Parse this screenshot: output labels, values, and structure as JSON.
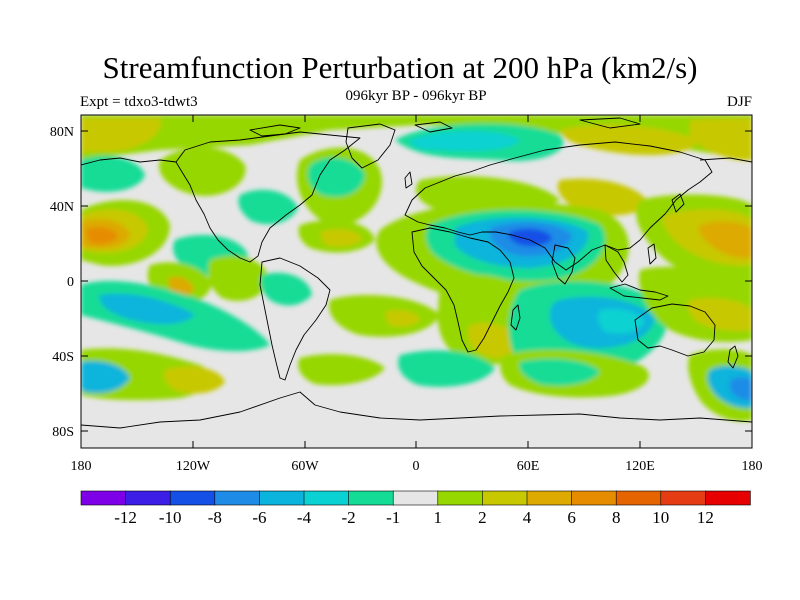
{
  "title": "Streamfunction Perturbation at 200 hPa (km2/s)",
  "subtitle": "096kyr BP - 096kyr BP",
  "left_label": "Expt = tdxo3-tdwt3",
  "right_label": "DJF",
  "lat_ticks": [
    "80N",
    "40N",
    "0",
    "40S",
    "80S"
  ],
  "lon_ticks": [
    "180",
    "120W",
    "60W",
    "0",
    "60E",
    "120E",
    "180"
  ],
  "colorbar": {
    "colors": [
      "#7d00e6",
      "#3c1ee6",
      "#1450e6",
      "#1e8ce6",
      "#0ab4dc",
      "#0ad2d2",
      "#14dc96",
      "#e6e6e6",
      "#96d700",
      "#c8c800",
      "#dcaa00",
      "#e68c00",
      "#e66400",
      "#e63c14",
      "#e60000"
    ],
    "labels": [
      "-12",
      "-10",
      "-8",
      "-6",
      "-4",
      "-2",
      "-1",
      "1",
      "2",
      "4",
      "6",
      "8",
      "10",
      "12"
    ]
  }
}
